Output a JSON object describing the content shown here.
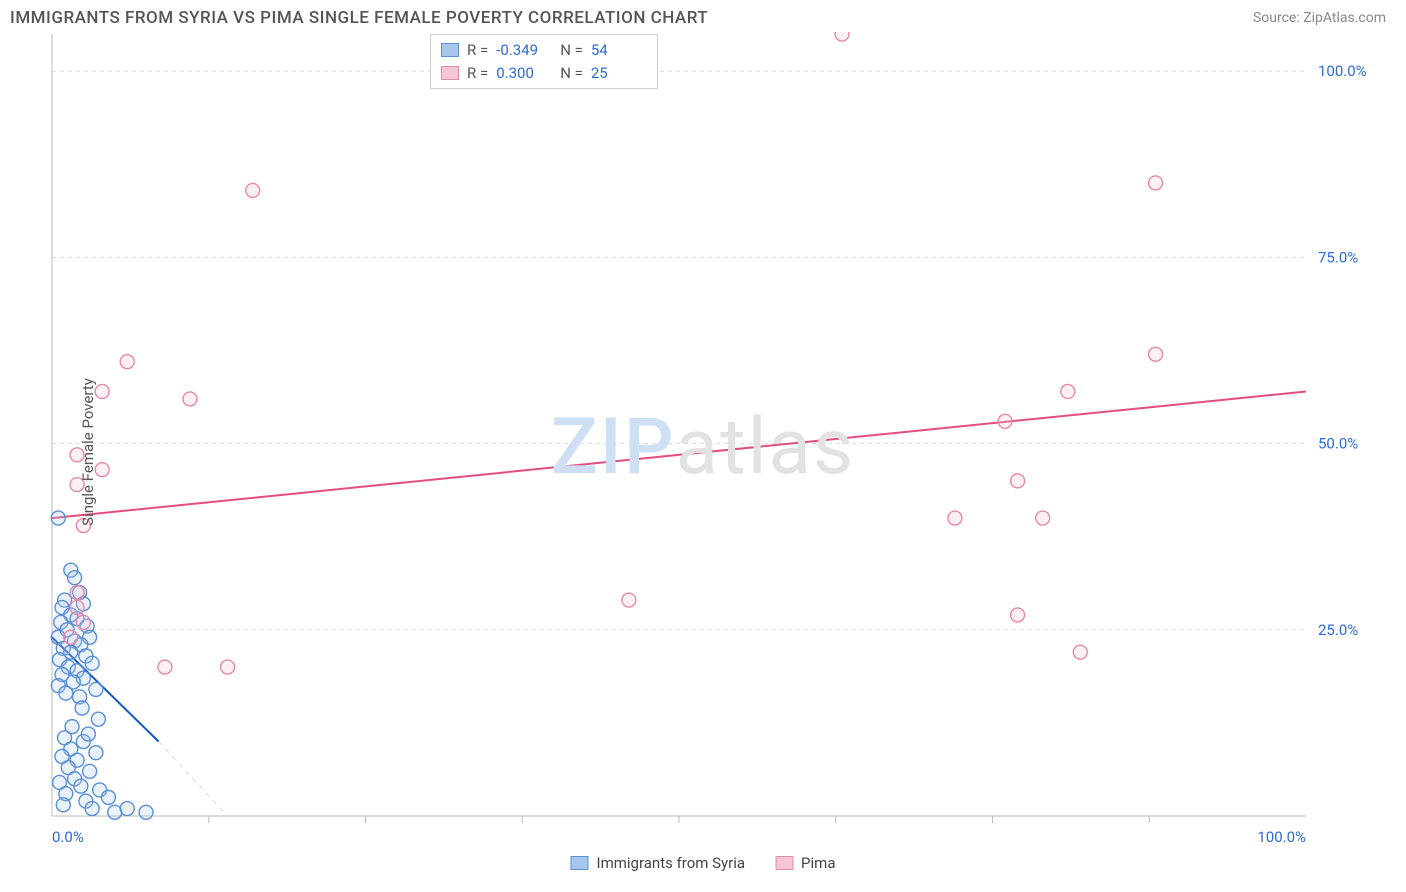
{
  "title": "IMMIGRANTS FROM SYRIA VS PIMA SINGLE FEMALE POVERTY CORRELATION CHART",
  "source": "Source: ZipAtlas.com",
  "watermark": {
    "zip": "ZIP",
    "atlas": "atlas"
  },
  "ylabel": "Single Female Poverty",
  "chart": {
    "type": "scatter",
    "background_color": "#ffffff",
    "grid_color": "#d9d9d9",
    "axis_color": "#bbbbbb",
    "text_color": "#555555",
    "tick_label_color": "#2e6bd6",
    "xlim": [
      0,
      100
    ],
    "ylim": [
      0,
      105
    ],
    "x_ticks": [
      0,
      100
    ],
    "x_tick_labels": [
      "0.0%",
      "100.0%"
    ],
    "x_minor_ticks": [
      12.5,
      25,
      37.5,
      50,
      62.5,
      75,
      87.5
    ],
    "y_ticks": [
      25,
      50,
      75,
      100
    ],
    "y_tick_labels": [
      "25.0%",
      "50.0%",
      "75.0%",
      "100.0%"
    ],
    "label_fontsize": 15,
    "tick_fontsize": 15,
    "marker_radius": 7,
    "marker_stroke_width": 1.4,
    "marker_fill_opacity": 0.25,
    "trend_line_width": 2,
    "series": [
      {
        "name": "Immigrants from Syria",
        "color_stroke": "#5a8fd6",
        "color_fill": "#a7c6ec",
        "line_color": "#1257c9",
        "R": "-0.349",
        "N": "54",
        "trend": {
          "x1": 0,
          "y1": 24,
          "x2": 8.5,
          "y2": 10
        },
        "trend_ext": {
          "x1": 8.5,
          "y1": 10,
          "x2": 14,
          "y2": 0
        },
        "points": [
          [
            0.5,
            40
          ],
          [
            1.5,
            33
          ],
          [
            1.8,
            32
          ],
          [
            2.2,
            30
          ],
          [
            1.0,
            29
          ],
          [
            2.5,
            28.5
          ],
          [
            0.8,
            28
          ],
          [
            1.5,
            27
          ],
          [
            2.0,
            26.5
          ],
          [
            0.7,
            26
          ],
          [
            2.8,
            25.5
          ],
          [
            1.2,
            25
          ],
          [
            3.0,
            24
          ],
          [
            0.5,
            24
          ],
          [
            1.8,
            23.5
          ],
          [
            2.3,
            23
          ],
          [
            0.9,
            22.5
          ],
          [
            1.5,
            22
          ],
          [
            2.7,
            21.5
          ],
          [
            0.6,
            21
          ],
          [
            3.2,
            20.5
          ],
          [
            1.3,
            20
          ],
          [
            2.0,
            19.5
          ],
          [
            0.8,
            19
          ],
          [
            2.5,
            18.5
          ],
          [
            1.7,
            18
          ],
          [
            0.5,
            17.5
          ],
          [
            3.5,
            17
          ],
          [
            1.1,
            16.5
          ],
          [
            2.2,
            16
          ],
          [
            1.0,
            10.5
          ],
          [
            2.5,
            10
          ],
          [
            1.5,
            9
          ],
          [
            3.5,
            8.5
          ],
          [
            0.8,
            8
          ],
          [
            2.0,
            7.5
          ],
          [
            1.3,
            6.5
          ],
          [
            3.0,
            6
          ],
          [
            1.8,
            5
          ],
          [
            0.6,
            4.5
          ],
          [
            2.3,
            4
          ],
          [
            3.8,
            3.5
          ],
          [
            1.1,
            3
          ],
          [
            4.5,
            2.5
          ],
          [
            2.7,
            2
          ],
          [
            0.9,
            1.5
          ],
          [
            6.0,
            1
          ],
          [
            3.2,
            1
          ],
          [
            7.5,
            0.5
          ],
          [
            5.0,
            0.5
          ],
          [
            2.4,
            14.5
          ],
          [
            3.7,
            13
          ],
          [
            1.6,
            12
          ],
          [
            2.9,
            11
          ]
        ]
      },
      {
        "name": "Pima",
        "color_stroke": "#e589a8",
        "color_fill": "#f6c5d6",
        "line_color": "#e34d82",
        "R": "0.300",
        "N": "25",
        "trend": {
          "x1": 0,
          "y1": 40,
          "x2": 100,
          "y2": 57
        },
        "points": [
          [
            63,
            105
          ],
          [
            88,
            85
          ],
          [
            16,
            84
          ],
          [
            6,
            61
          ],
          [
            88,
            62
          ],
          [
            4,
            57
          ],
          [
            11,
            56
          ],
          [
            81,
            57
          ],
          [
            76,
            53
          ],
          [
            77,
            45
          ],
          [
            2,
            48.5
          ],
          [
            4,
            46.5
          ],
          [
            2,
            44.5
          ],
          [
            79,
            40
          ],
          [
            72,
            40
          ],
          [
            2.5,
            39
          ],
          [
            46,
            29
          ],
          [
            77,
            27
          ],
          [
            82,
            22
          ],
          [
            9,
            20
          ],
          [
            14,
            20
          ],
          [
            2,
            30
          ],
          [
            2,
            28
          ],
          [
            1.5,
            24
          ],
          [
            2.5,
            26
          ]
        ]
      }
    ]
  },
  "legend_bottom": [
    {
      "label": "Immigrants from Syria",
      "stroke": "#5a8fd6",
      "fill": "#a7c6ec"
    },
    {
      "label": "Pima",
      "stroke": "#e589a8",
      "fill": "#f6c5d6"
    }
  ]
}
